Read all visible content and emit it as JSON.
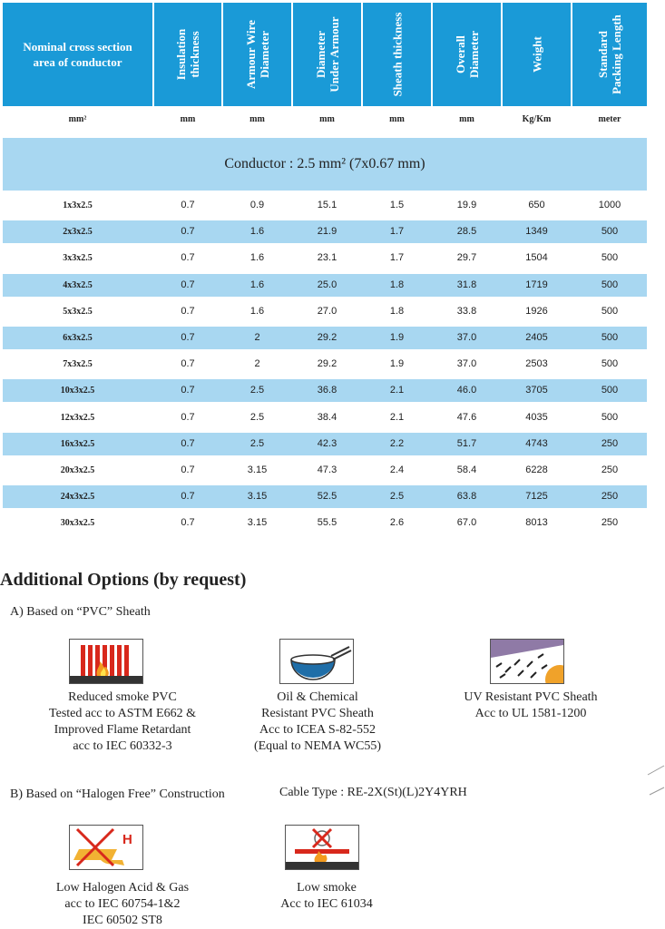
{
  "table": {
    "headers": [
      "Nominal cross section area of conductor",
      "Insulation thickness",
      "Armour Wire Diameter",
      "Diameter Under Armour",
      "Sheath thickness",
      "Overall Diameter",
      "Weight",
      "Standard Packing Length"
    ],
    "units": [
      "mm²",
      "mm",
      "mm",
      "mm",
      "mm",
      "mm",
      "Kg/Km",
      "meter"
    ],
    "conductor_label": "Conductor : 2.5 mm² (7x0.67 mm)",
    "rows": [
      [
        "1x3x2.5",
        "0.7",
        "0.9",
        "15.1",
        "1.5",
        "19.9",
        "650",
        "1000"
      ],
      [
        "2x3x2.5",
        "0.7",
        "1.6",
        "21.9",
        "1.7",
        "28.5",
        "1349",
        "500"
      ],
      [
        "3x3x2.5",
        "0.7",
        "1.6",
        "23.1",
        "1.7",
        "29.7",
        "1504",
        "500"
      ],
      [
        "4x3x2.5",
        "0.7",
        "1.6",
        "25.0",
        "1.8",
        "31.8",
        "1719",
        "500"
      ],
      [
        "5x3x2.5",
        "0.7",
        "1.6",
        "27.0",
        "1.8",
        "33.8",
        "1926",
        "500"
      ],
      [
        "6x3x2.5",
        "0.7",
        "2",
        "29.2",
        "1.9",
        "37.0",
        "2405",
        "500"
      ],
      [
        "7x3x2.5",
        "0.7",
        "2",
        "29.2",
        "1.9",
        "37.0",
        "2503",
        "500"
      ],
      [
        "10x3x2.5",
        "0.7",
        "2.5",
        "36.8",
        "2.1",
        "46.0",
        "3705",
        "500"
      ],
      [
        "12x3x2.5",
        "0.7",
        "2.5",
        "38.4",
        "2.1",
        "47.6",
        "4035",
        "500"
      ],
      [
        "16x3x2.5",
        "0.7",
        "2.5",
        "42.3",
        "2.2",
        "51.7",
        "4743",
        "250"
      ],
      [
        "20x3x2.5",
        "0.7",
        "3.15",
        "47.3",
        "2.4",
        "58.4",
        "6228",
        "250"
      ],
      [
        "24x3x2.5",
        "0.7",
        "3.15",
        "52.5",
        "2.5",
        "63.8",
        "7125",
        "250"
      ],
      [
        "30x3x2.5",
        "0.7",
        "3.15",
        "55.5",
        "2.6",
        "67.0",
        "8013",
        "250"
      ]
    ]
  },
  "options": {
    "title": "Additional Options (by request)",
    "section_a": "A) Based on “PVC” Sheath",
    "section_b": "B) Based on “Halogen Free” Construction",
    "cable_type": "Cable Type : RE-2X(St)(L)2Y4YRH",
    "pvc_items": [
      {
        "icon": "reduced-smoke-icon",
        "lines": [
          "Reduced smoke PVC",
          "Tested acc to ASTM E662 &",
          "Improved Flame Retardant",
          "acc to IEC 60332-3"
        ]
      },
      {
        "icon": "oil-chemical-icon",
        "lines": [
          "Oil & Chemical",
          "Resistant PVC Sheath",
          "Acc to ICEA S-82-552",
          "(Equal to NEMA WC55)"
        ]
      },
      {
        "icon": "uv-resistant-icon",
        "lines": [
          "UV Resistant PVC Sheath",
          "Acc to UL 1581-1200"
        ]
      }
    ],
    "hf_items": [
      {
        "icon": "low-halogen-icon",
        "lines": [
          "Low Halogen Acid & Gas",
          "acc to IEC 60754-1&2",
          "IEC 60502 ST8"
        ]
      },
      {
        "icon": "low-smoke-icon",
        "lines": [
          "Low smoke",
          "Acc to IEC 61034"
        ]
      }
    ],
    "halogen_mark": "H"
  },
  "colors": {
    "header_blue": "#1a9ad7",
    "row_blue": "#a8d7f1"
  }
}
